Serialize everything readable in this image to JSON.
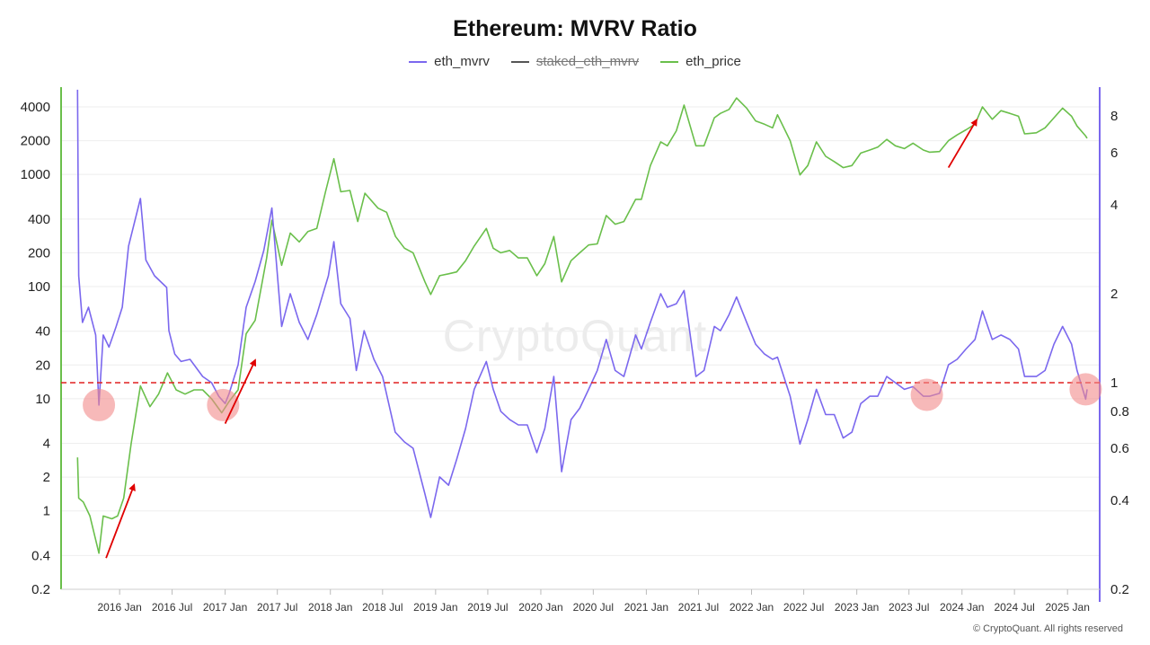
{
  "chart_data": {
    "type": "line",
    "title": "Ethereum: MVRV Ratio",
    "watermark": "CryptoQuant",
    "footer": "© CryptoQuant. All rights reserved",
    "legend": [
      {
        "name": "eth_mvrv",
        "color": "#7b68ee",
        "hidden": false
      },
      {
        "name": "staked_eth_mvrv",
        "color": "#555555",
        "hidden": true
      },
      {
        "name": "eth_price",
        "color": "#6abf4b",
        "hidden": false
      }
    ],
    "x_range": [
      "2015-08-07",
      "2025-03-10"
    ],
    "x_ticks": [
      "2016 Jan",
      "2016 Jul",
      "2017 Jan",
      "2017 Jul",
      "2018 Jan",
      "2018 Jul",
      "2019 Jan",
      "2019 Jul",
      "2020 Jan",
      "2020 Jul",
      "2021 Jan",
      "2021 Jul",
      "2022 Jan",
      "2022 Jul",
      "2023 Jan",
      "2023 Jul",
      "2024 Jan",
      "2024 Jul",
      "2025 Jan"
    ],
    "y_left": {
      "scale": "log",
      "range": [
        0.2,
        6000
      ],
      "ticks": [
        "4000",
        "2000",
        "1000",
        "400",
        "200",
        "100",
        "40",
        "20",
        "10",
        "4",
        "2",
        "1",
        "0.4",
        "0.2"
      ],
      "color": "#6abf4b"
    },
    "y_right": {
      "scale": "log",
      "range": [
        0.2,
        10
      ],
      "ticks": [
        "8",
        "6",
        "4",
        "2",
        "1",
        "0.8",
        "0.6",
        "0.4",
        "0.2"
      ],
      "color": "#7b68ee"
    },
    "reference_line": {
      "axis": "right",
      "value": 1,
      "color": "#e02020",
      "style": "dashed"
    },
    "series": [
      {
        "name": "eth_mvrv",
        "axis": "right",
        "color": "#7b68ee",
        "points": [
          [
            "2015-08-08",
            9.8
          ],
          [
            "2015-08-12",
            2.3
          ],
          [
            "2015-08-25",
            1.6
          ],
          [
            "2015-09-15",
            1.8
          ],
          [
            "2015-10-10",
            1.45
          ],
          [
            "2015-10-21",
            0.84
          ],
          [
            "2015-11-05",
            1.45
          ],
          [
            "2015-11-25",
            1.32
          ],
          [
            "2015-12-20",
            1.55
          ],
          [
            "2016-01-10",
            1.8
          ],
          [
            "2016-02-01",
            2.9
          ],
          [
            "2016-03-13",
            4.2
          ],
          [
            "2016-04-01",
            2.6
          ],
          [
            "2016-05-01",
            2.3
          ],
          [
            "2016-06-12",
            2.1
          ],
          [
            "2016-06-20",
            1.5
          ],
          [
            "2016-07-10",
            1.25
          ],
          [
            "2016-08-01",
            1.18
          ],
          [
            "2016-09-01",
            1.2
          ],
          [
            "2016-10-15",
            1.05
          ],
          [
            "2016-11-15",
            1.0
          ],
          [
            "2016-12-10",
            0.9
          ],
          [
            "2017-01-01",
            0.85
          ],
          [
            "2017-01-15",
            0.92
          ],
          [
            "2017-02-15",
            1.15
          ],
          [
            "2017-03-15",
            1.8
          ],
          [
            "2017-04-15",
            2.2
          ],
          [
            "2017-05-15",
            2.8
          ],
          [
            "2017-06-12",
            3.9
          ],
          [
            "2017-07-16",
            1.55
          ],
          [
            "2017-08-15",
            2.0
          ],
          [
            "2017-09-15",
            1.6
          ],
          [
            "2017-10-15",
            1.4
          ],
          [
            "2017-11-15",
            1.7
          ],
          [
            "2017-12-25",
            2.3
          ],
          [
            "2018-01-13",
            3.0
          ],
          [
            "2018-02-06",
            1.85
          ],
          [
            "2018-03-10",
            1.65
          ],
          [
            "2018-04-01",
            1.1
          ],
          [
            "2018-04-28",
            1.5
          ],
          [
            "2018-06-01",
            1.2
          ],
          [
            "2018-07-01",
            1.05
          ],
          [
            "2018-08-14",
            0.68
          ],
          [
            "2018-09-15",
            0.63
          ],
          [
            "2018-10-15",
            0.6
          ],
          [
            "2018-11-25",
            0.42
          ],
          [
            "2018-12-15",
            0.35
          ],
          [
            "2019-01-15",
            0.48
          ],
          [
            "2019-02-15",
            0.45
          ],
          [
            "2019-03-15",
            0.55
          ],
          [
            "2019-04-15",
            0.7
          ],
          [
            "2019-05-15",
            0.95
          ],
          [
            "2019-06-26",
            1.18
          ],
          [
            "2019-07-20",
            0.95
          ],
          [
            "2019-08-15",
            0.8
          ],
          [
            "2019-09-15",
            0.75
          ],
          [
            "2019-10-15",
            0.72
          ],
          [
            "2019-11-15",
            0.72
          ],
          [
            "2019-12-18",
            0.58
          ],
          [
            "2020-01-15",
            0.7
          ],
          [
            "2020-02-15",
            1.05
          ],
          [
            "2020-03-13",
            0.5
          ],
          [
            "2020-04-15",
            0.75
          ],
          [
            "2020-05-15",
            0.82
          ],
          [
            "2020-06-15",
            0.95
          ],
          [
            "2020-07-15",
            1.1
          ],
          [
            "2020-08-15",
            1.4
          ],
          [
            "2020-09-15",
            1.1
          ],
          [
            "2020-10-15",
            1.05
          ],
          [
            "2020-11-25",
            1.45
          ],
          [
            "2020-12-15",
            1.3
          ],
          [
            "2021-01-15",
            1.6
          ],
          [
            "2021-02-20",
            2.0
          ],
          [
            "2021-03-15",
            1.8
          ],
          [
            "2021-04-15",
            1.85
          ],
          [
            "2021-05-12",
            2.05
          ],
          [
            "2021-06-22",
            1.05
          ],
          [
            "2021-07-20",
            1.1
          ],
          [
            "2021-08-25",
            1.55
          ],
          [
            "2021-09-15",
            1.5
          ],
          [
            "2021-10-15",
            1.7
          ],
          [
            "2021-11-10",
            1.95
          ],
          [
            "2021-12-15",
            1.6
          ],
          [
            "2022-01-15",
            1.35
          ],
          [
            "2022-02-15",
            1.25
          ],
          [
            "2022-03-15",
            1.2
          ],
          [
            "2022-04-01",
            1.22
          ],
          [
            "2022-05-15",
            0.9
          ],
          [
            "2022-06-18",
            0.62
          ],
          [
            "2022-07-15",
            0.75
          ],
          [
            "2022-08-14",
            0.95
          ],
          [
            "2022-09-15",
            0.78
          ],
          [
            "2022-10-15",
            0.78
          ],
          [
            "2022-11-15",
            0.65
          ],
          [
            "2022-12-15",
            0.68
          ],
          [
            "2023-01-15",
            0.85
          ],
          [
            "2023-02-15",
            0.9
          ],
          [
            "2023-03-15",
            0.9
          ],
          [
            "2023-04-15",
            1.05
          ],
          [
            "2023-05-15",
            1.0
          ],
          [
            "2023-06-15",
            0.95
          ],
          [
            "2023-07-15",
            0.97
          ],
          [
            "2023-08-20",
            0.9
          ],
          [
            "2023-09-10",
            0.9
          ],
          [
            "2023-10-15",
            0.92
          ],
          [
            "2023-11-15",
            1.15
          ],
          [
            "2023-12-15",
            1.2
          ],
          [
            "2024-01-15",
            1.3
          ],
          [
            "2024-02-15",
            1.4
          ],
          [
            "2024-03-12",
            1.75
          ],
          [
            "2024-04-15",
            1.4
          ],
          [
            "2024-05-15",
            1.45
          ],
          [
            "2024-06-15",
            1.4
          ],
          [
            "2024-07-15",
            1.3
          ],
          [
            "2024-08-05",
            1.05
          ],
          [
            "2024-09-15",
            1.05
          ],
          [
            "2024-10-15",
            1.1
          ],
          [
            "2024-11-15",
            1.35
          ],
          [
            "2024-12-15",
            1.55
          ],
          [
            "2025-01-15",
            1.35
          ],
          [
            "2025-02-03",
            1.1
          ],
          [
            "2025-03-05",
            0.88
          ],
          [
            "2025-03-10",
            0.95
          ]
        ]
      },
      {
        "name": "eth_price",
        "axis": "left",
        "color": "#6abf4b",
        "points": [
          [
            "2015-08-08",
            3.0
          ],
          [
            "2015-08-12",
            1.3
          ],
          [
            "2015-08-28",
            1.2
          ],
          [
            "2015-09-20",
            0.9
          ],
          [
            "2015-10-21",
            0.42
          ],
          [
            "2015-11-05",
            0.9
          ],
          [
            "2015-12-05",
            0.85
          ],
          [
            "2015-12-25",
            0.9
          ],
          [
            "2016-01-15",
            1.3
          ],
          [
            "2016-02-10",
            4.0
          ],
          [
            "2016-03-13",
            13
          ],
          [
            "2016-04-15",
            8.5
          ],
          [
            "2016-05-15",
            11
          ],
          [
            "2016-06-15",
            17
          ],
          [
            "2016-07-15",
            12
          ],
          [
            "2016-08-15",
            11
          ],
          [
            "2016-09-15",
            12
          ],
          [
            "2016-10-15",
            12
          ],
          [
            "2016-11-15",
            10
          ],
          [
            "2016-12-20",
            7.5
          ],
          [
            "2017-01-15",
            9.5
          ],
          [
            "2017-02-15",
            12
          ],
          [
            "2017-03-15",
            38
          ],
          [
            "2017-04-15",
            50
          ],
          [
            "2017-05-25",
            180
          ],
          [
            "2017-06-12",
            390
          ],
          [
            "2017-07-16",
            155
          ],
          [
            "2017-08-15",
            300
          ],
          [
            "2017-09-15",
            250
          ],
          [
            "2017-10-15",
            310
          ],
          [
            "2017-11-15",
            330
          ],
          [
            "2017-12-15",
            700
          ],
          [
            "2018-01-13",
            1380
          ],
          [
            "2018-02-06",
            700
          ],
          [
            "2018-03-10",
            720
          ],
          [
            "2018-04-06",
            380
          ],
          [
            "2018-05-01",
            680
          ],
          [
            "2018-06-15",
            500
          ],
          [
            "2018-07-15",
            460
          ],
          [
            "2018-08-15",
            280
          ],
          [
            "2018-09-15",
            220
          ],
          [
            "2018-10-15",
            200
          ],
          [
            "2018-11-25",
            110
          ],
          [
            "2018-12-15",
            85
          ],
          [
            "2019-01-15",
            125
          ],
          [
            "2019-02-15",
            130
          ],
          [
            "2019-03-15",
            135
          ],
          [
            "2019-04-15",
            170
          ],
          [
            "2019-05-15",
            230
          ],
          [
            "2019-06-26",
            330
          ],
          [
            "2019-07-20",
            220
          ],
          [
            "2019-08-15",
            200
          ],
          [
            "2019-09-15",
            210
          ],
          [
            "2019-10-15",
            180
          ],
          [
            "2019-11-15",
            180
          ],
          [
            "2019-12-18",
            125
          ],
          [
            "2020-01-15",
            160
          ],
          [
            "2020-02-15",
            280
          ],
          [
            "2020-03-13",
            110
          ],
          [
            "2020-04-15",
            170
          ],
          [
            "2020-05-15",
            200
          ],
          [
            "2020-06-15",
            235
          ],
          [
            "2020-07-15",
            240
          ],
          [
            "2020-08-15",
            430
          ],
          [
            "2020-09-15",
            360
          ],
          [
            "2020-10-15",
            380
          ],
          [
            "2020-11-25",
            600
          ],
          [
            "2020-12-15",
            600
          ],
          [
            "2021-01-15",
            1200
          ],
          [
            "2021-02-20",
            1950
          ],
          [
            "2021-03-15",
            1800
          ],
          [
            "2021-04-15",
            2450
          ],
          [
            "2021-05-12",
            4150
          ],
          [
            "2021-06-22",
            1800
          ],
          [
            "2021-07-20",
            1800
          ],
          [
            "2021-08-25",
            3200
          ],
          [
            "2021-09-15",
            3500
          ],
          [
            "2021-10-15",
            3800
          ],
          [
            "2021-11-10",
            4800
          ],
          [
            "2021-12-15",
            3900
          ],
          [
            "2022-01-15",
            3000
          ],
          [
            "2022-02-15",
            2800
          ],
          [
            "2022-03-15",
            2600
          ],
          [
            "2022-04-01",
            3400
          ],
          [
            "2022-05-15",
            2000
          ],
          [
            "2022-06-18",
            990
          ],
          [
            "2022-07-15",
            1200
          ],
          [
            "2022-08-14",
            1950
          ],
          [
            "2022-09-15",
            1450
          ],
          [
            "2022-10-15",
            1300
          ],
          [
            "2022-11-15",
            1150
          ],
          [
            "2022-12-15",
            1200
          ],
          [
            "2023-01-15",
            1550
          ],
          [
            "2023-02-15",
            1650
          ],
          [
            "2023-03-15",
            1750
          ],
          [
            "2023-04-15",
            2050
          ],
          [
            "2023-05-15",
            1800
          ],
          [
            "2023-06-15",
            1700
          ],
          [
            "2023-07-15",
            1900
          ],
          [
            "2023-08-20",
            1650
          ],
          [
            "2023-09-10",
            1580
          ],
          [
            "2023-10-15",
            1600
          ],
          [
            "2023-11-15",
            2000
          ],
          [
            "2023-12-15",
            2250
          ],
          [
            "2024-01-15",
            2500
          ],
          [
            "2024-02-15",
            2800
          ],
          [
            "2024-03-12",
            4000
          ],
          [
            "2024-04-15",
            3100
          ],
          [
            "2024-05-15",
            3700
          ],
          [
            "2024-06-15",
            3500
          ],
          [
            "2024-07-15",
            3300
          ],
          [
            "2024-08-05",
            2300
          ],
          [
            "2024-09-15",
            2350
          ],
          [
            "2024-10-15",
            2600
          ],
          [
            "2024-11-15",
            3200
          ],
          [
            "2024-12-15",
            3900
          ],
          [
            "2025-01-15",
            3300
          ],
          [
            "2025-02-03",
            2700
          ],
          [
            "2025-03-05",
            2200
          ],
          [
            "2025-03-10",
            2100
          ]
        ]
      }
    ],
    "annotations": {
      "circles": [
        {
          "date": "2015-10-21",
          "value": 0.84,
          "axis": "right"
        },
        {
          "date": "2016-12-25",
          "value": 0.84,
          "axis": "right"
        },
        {
          "date": "2023-09-01",
          "value": 0.91,
          "axis": "right"
        },
        {
          "date": "2025-03-05",
          "value": 0.95,
          "axis": "right"
        }
      ],
      "arrows": [
        {
          "from_date": "2015-11-15",
          "from_value": 0.38,
          "to_date": "2016-02-20",
          "to_value": 1.7,
          "axis": "left"
        },
        {
          "from_date": "2017-01-01",
          "from_value": 6.0,
          "to_date": "2017-04-15",
          "to_value": 22,
          "axis": "left"
        },
        {
          "from_date": "2023-11-15",
          "from_value": 1150,
          "to_date": "2024-02-20",
          "to_value": 3050,
          "axis": "left"
        }
      ]
    }
  }
}
